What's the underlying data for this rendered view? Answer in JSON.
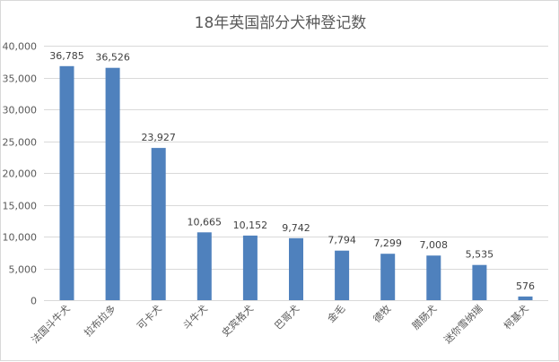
{
  "chart_data": {
    "type": "bar",
    "title": "18年英国部分犬种登记数",
    "xlabel": "",
    "ylabel": "",
    "categories": [
      "法国斗牛犬",
      "拉布拉多",
      "可卡犬",
      "斗牛犬",
      "史宾格犬",
      "巴哥犬",
      "金毛",
      "德牧",
      "腊肠犬",
      "迷你雪纳瑞",
      "柯基犬"
    ],
    "values": [
      36785,
      36526,
      23927,
      10665,
      10152,
      9742,
      7794,
      7299,
      7008,
      5535,
      576
    ],
    "data_labels": [
      "36,785",
      "36,526",
      "23,927",
      "10,665",
      "10,152",
      "9,742",
      "7,794",
      "7,299",
      "7,008",
      "5,535",
      "576"
    ],
    "ylim": [
      0,
      40000
    ],
    "yticks": [
      0,
      5000,
      10000,
      15000,
      20000,
      25000,
      30000,
      35000,
      40000
    ],
    "ytick_labels": [
      "0",
      "5,000",
      "10,000",
      "15,000",
      "20,000",
      "25,000",
      "30,000",
      "35,000",
      "40,000"
    ],
    "grid": true,
    "legend": "none",
    "bar_color": "#4f81bd"
  }
}
